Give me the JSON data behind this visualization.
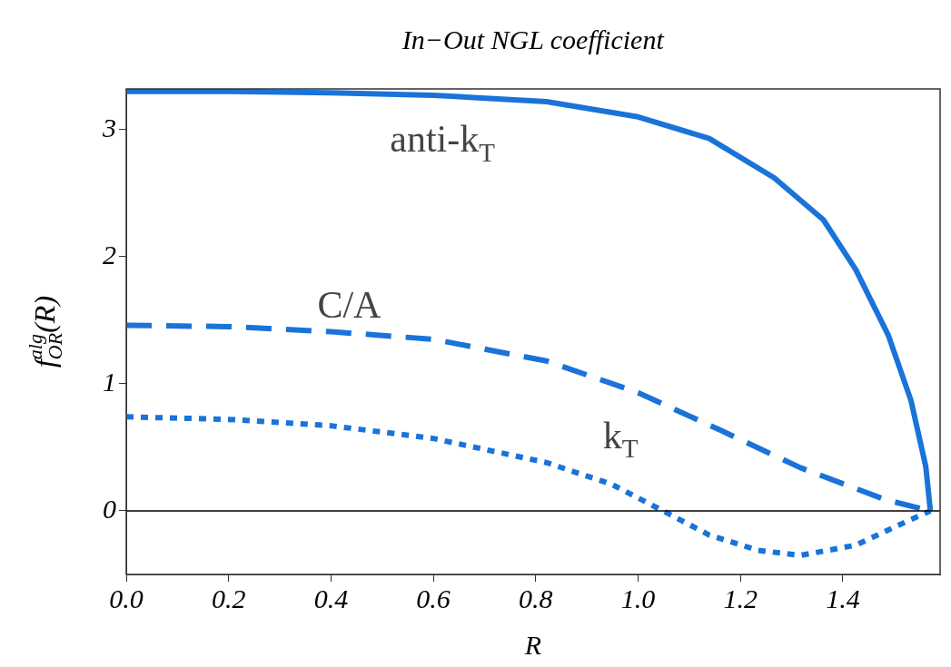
{
  "chart_data": {
    "type": "line",
    "title": "In−Out NGL coefficient",
    "xlabel": "R",
    "ylabel": "f$^{alg}$$_{OR}$(R)",
    "xlim": [
      0,
      1.59
    ],
    "xticks": [
      {
        "value": 0,
        "label": "0.0"
      },
      0.2,
      0.4,
      0.6,
      0.8,
      {
        "value": 1,
        "label": "1.0"
      },
      1.2,
      1.4
    ],
    "ylim": [
      -0.5,
      3.32
    ],
    "yticks": [
      0,
      1,
      2,
      3
    ],
    "grid": false,
    "legend": false,
    "marker": "none",
    "series": [
      {
        "name": "anti-k$_{T}$",
        "color": "#1a73d8",
        "line_style": "solid",
        "x": [
          0,
          0.2,
          0.4,
          0.6,
          0.821,
          1.0,
          1.139,
          1.266,
          1.362,
          1.425,
          1.489,
          1.533,
          1.562,
          1.571
        ],
        "values": [
          3.3,
          3.3,
          3.29,
          3.27,
          3.22,
          3.1,
          2.93,
          2.62,
          2.29,
          1.9,
          1.38,
          0.87,
          0.35,
          0
        ]
      },
      {
        "name": "C/A",
        "color": "#1a73d8",
        "line_style": "dashed",
        "x": [
          0,
          0.2,
          0.4,
          0.6,
          0.821,
          1.0,
          1.158,
          1.317,
          1.482,
          1.571
        ],
        "values": [
          1.46,
          1.45,
          1.41,
          1.35,
          1.18,
          0.93,
          0.64,
          0.34,
          0.09,
          0
        ]
      },
      {
        "name": "k$_{T}$",
        "color": "#1a73d8",
        "line_style": "dotted",
        "x": [
          0,
          0.2,
          0.4,
          0.6,
          0.821,
          0.948,
          1.044,
          1.139,
          1.234,
          1.317,
          1.425,
          1.521,
          1.571
        ],
        "values": [
          0.74,
          0.72,
          0.67,
          0.57,
          0.38,
          0.21,
          0.01,
          -0.19,
          -0.31,
          -0.35,
          -0.27,
          -0.09,
          0
        ]
      }
    ],
    "ref_lines": [
      {
        "axis": "y",
        "value": 0,
        "color": "#000000"
      }
    ]
  }
}
